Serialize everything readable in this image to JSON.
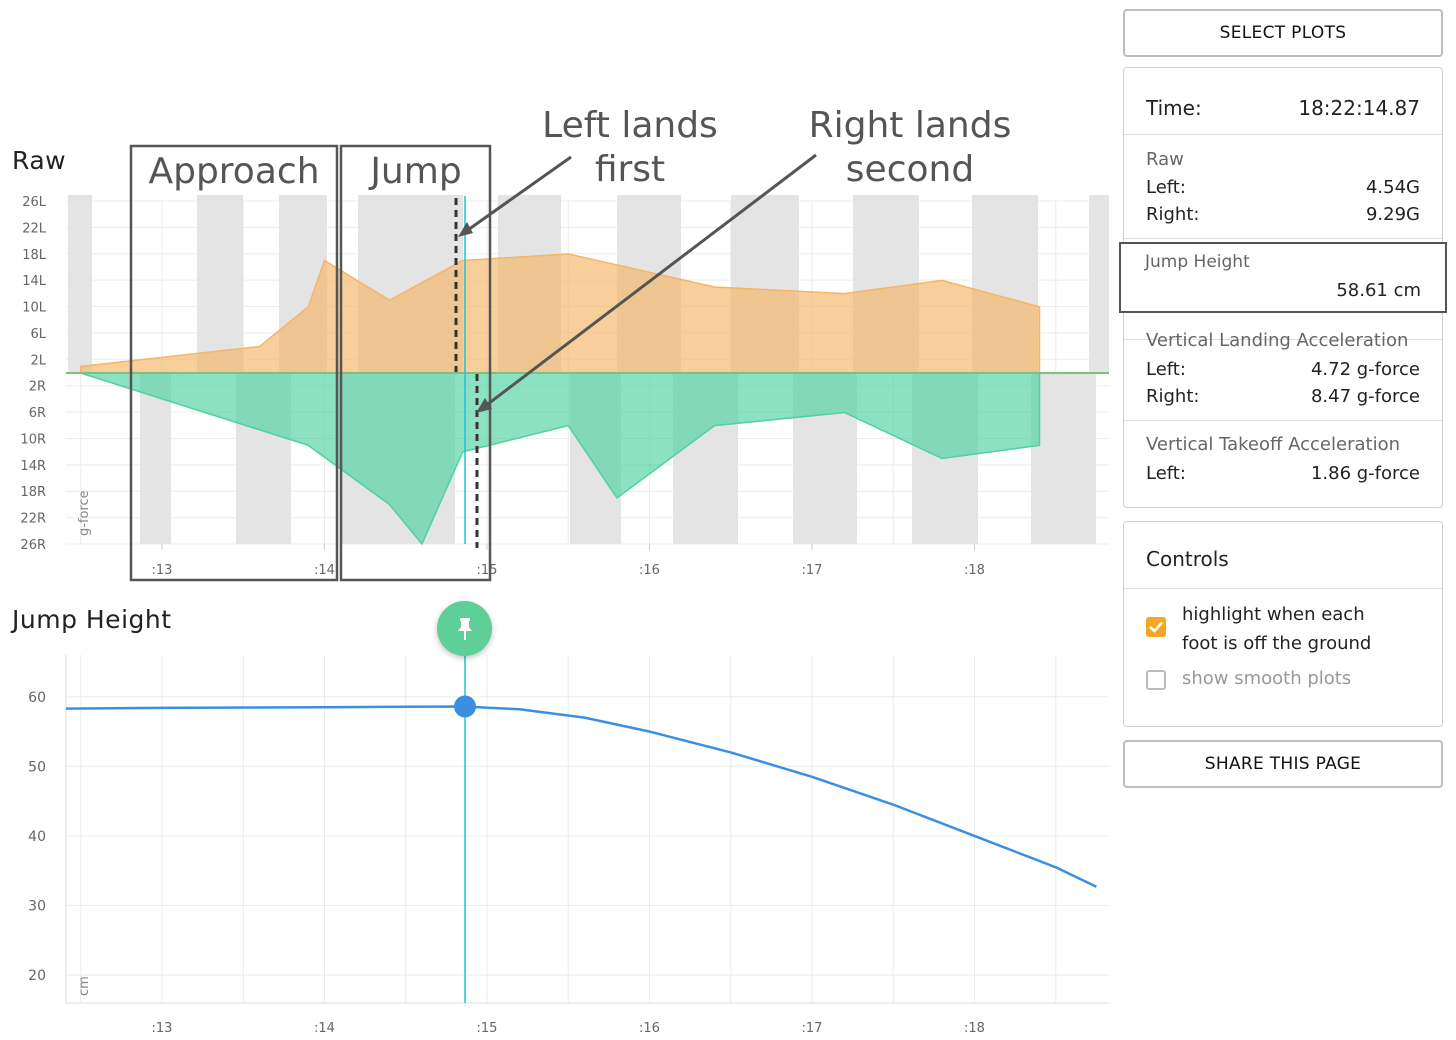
{
  "raw_chart": {
    "title": "Raw",
    "y_label": "g-force",
    "y_ticks": [
      "26L",
      "22L",
      "18L",
      "14L",
      "10L",
      "6L",
      "2L",
      "2R",
      "6R",
      "10R",
      "14R",
      "18R",
      "22R",
      "26R"
    ],
    "x_ticks": [
      ":13",
      ":14",
      ":15",
      ":16",
      ":17",
      ":18"
    ],
    "annotations": {
      "approach": "Approach",
      "jump": "Jump",
      "left_lands_line1": "Left lands",
      "left_lands_line2": "first",
      "right_lands_line1": "Right lands",
      "right_lands_line2": "second"
    },
    "colors": {
      "left": "#f5b565",
      "right": "#4fd1a1",
      "shade": "#e4e4e4",
      "cursor": "#1fc4d8"
    }
  },
  "jump_chart": {
    "title": "Jump Height",
    "y_label": "cm",
    "y_ticks": [
      "60",
      "50",
      "40",
      "30",
      "20"
    ],
    "x_ticks": [
      ":13",
      ":14",
      ":15",
      ":16",
      ":17",
      ":18"
    ],
    "colors": {
      "line": "#3b8fe0",
      "pin": "#5fcf9a"
    }
  },
  "chart_data": [
    {
      "type": "area",
      "title": "Raw",
      "ylabel": "g-force",
      "x_ticks": [
        ":13",
        ":14",
        ":15",
        ":16",
        ":17",
        ":18"
      ],
      "ylim": [
        "26R",
        "26L"
      ],
      "series": [
        {
          "name": "Left",
          "x_seconds": [
            12.5,
            13.6,
            13.9,
            14.0,
            14.4,
            14.85,
            15.5,
            16.4,
            17.2,
            17.8,
            18.4
          ],
          "values": [
            1,
            4,
            10,
            17,
            11,
            17,
            18,
            13,
            12,
            14,
            10
          ]
        },
        {
          "name": "Right",
          "x_seconds": [
            12.5,
            13.9,
            14.4,
            14.6,
            14.85,
            15.5,
            15.8,
            16.4,
            17.2,
            17.8,
            18.4
          ],
          "values": [
            0,
            -11,
            -20,
            -26,
            -12,
            -8,
            -19,
            -8,
            -6,
            -13,
            -11
          ]
        }
      ]
    },
    {
      "type": "line",
      "title": "Jump Height",
      "ylabel": "cm",
      "x_ticks": [
        ":13",
        ":14",
        ":15",
        ":16",
        ":17",
        ":18"
      ],
      "ylim": [
        16,
        66
      ],
      "x_seconds": [
        12.4,
        13.0,
        14.0,
        14.85,
        15.2,
        15.6,
        16.0,
        16.5,
        17.0,
        17.5,
        18.0,
        18.5,
        18.75
      ],
      "values": [
        58.3,
        58.4,
        58.5,
        58.6,
        58.2,
        57.0,
        55.0,
        52.0,
        48.5,
        44.5,
        40.0,
        35.5,
        32.7
      ]
    }
  ],
  "panel": {
    "select_plots": "SELECT PLOTS",
    "time_label": "Time:",
    "time_value": "18:22:14.87",
    "raw_title": "Raw",
    "raw_left_label": "Left:",
    "raw_left_value": "4.54G",
    "raw_right_label": "Right:",
    "raw_right_value": "9.29G",
    "jump_height_title": "Jump Height",
    "jump_height_value": "58.61 cm",
    "vla_title": "Vertical Landing Acceleration",
    "vla_left_label": "Left:",
    "vla_left_value": "4.72 g-force",
    "vla_right_label": "Right:",
    "vla_right_value": "8.47 g-force",
    "vta_title": "Vertical Takeoff Acceleration",
    "vta_left_label": "Left:",
    "vta_left_value": "1.86 g-force",
    "controls_title": "Controls",
    "highlight_label_line1": "highlight when each",
    "highlight_label_line2": "foot is off the ground",
    "highlight_checked": true,
    "smooth_label": "show smooth plots",
    "smooth_checked": false,
    "share": "SHARE THIS PAGE"
  }
}
